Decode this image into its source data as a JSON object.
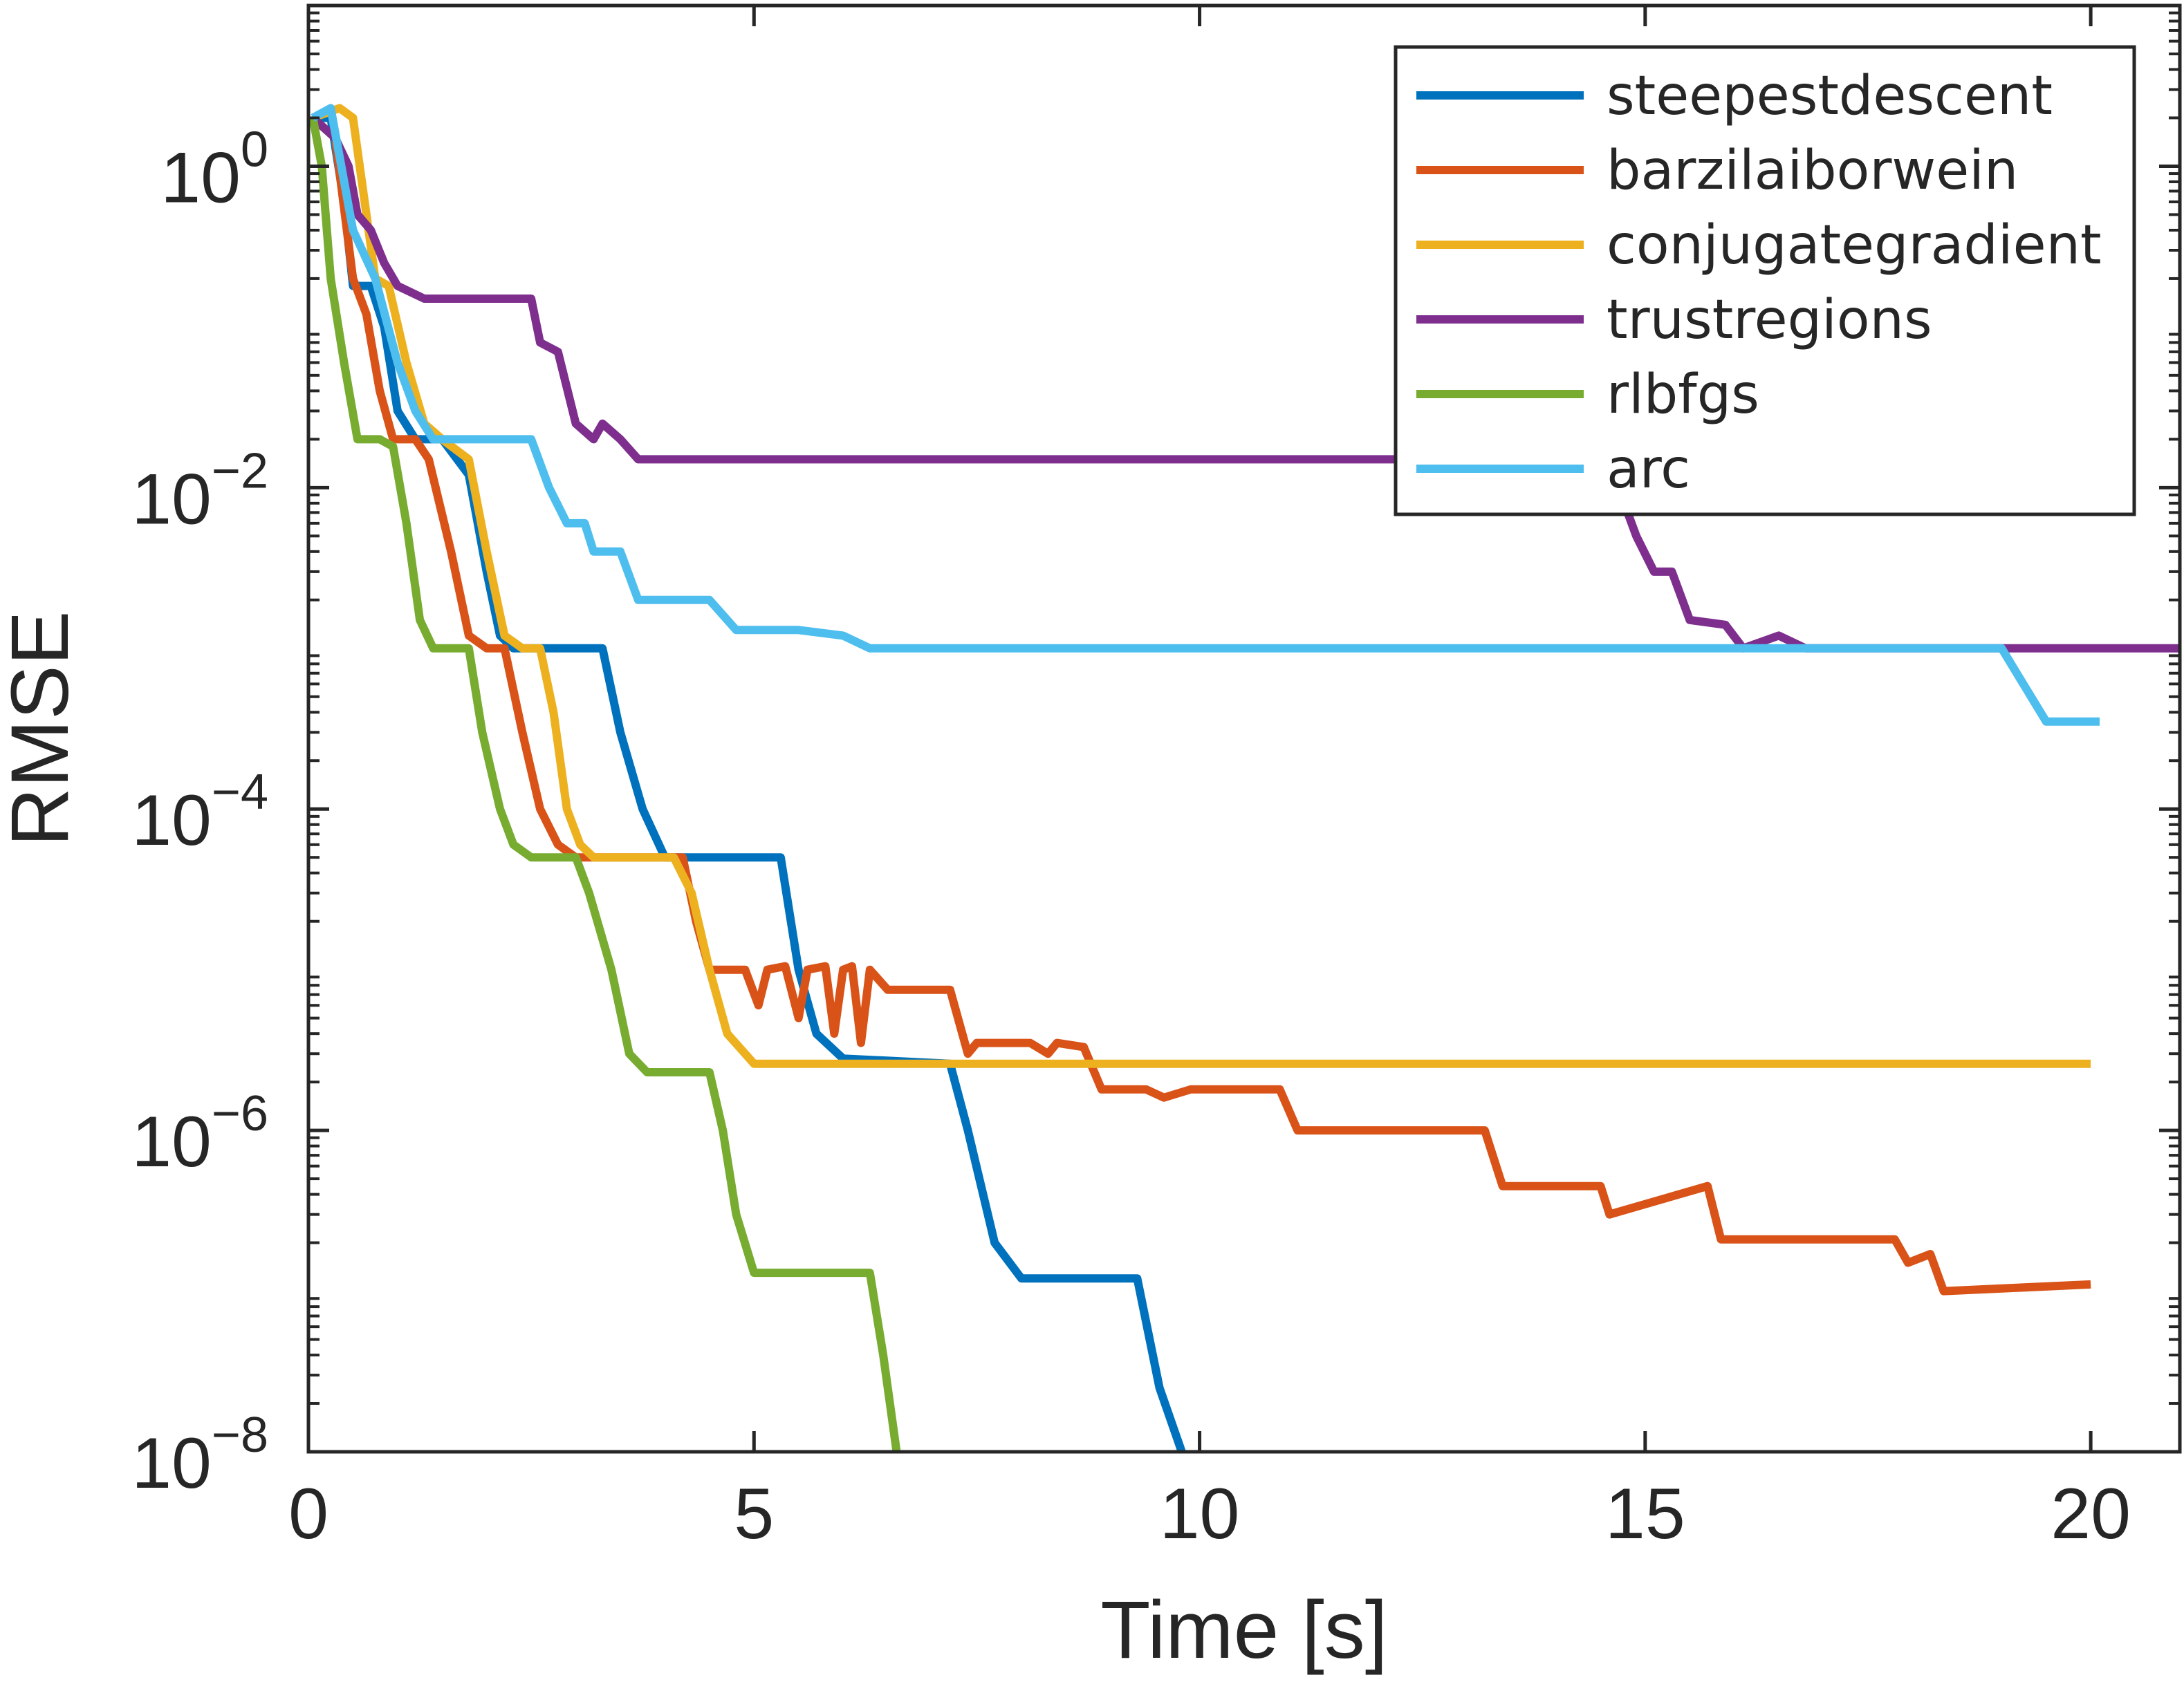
{
  "chart_data": {
    "type": "line",
    "title": "",
    "xlabel": "Time [s]",
    "ylabel": "RMSE",
    "xlim": [
      0,
      21
    ],
    "ylim": [
      1e-08,
      10
    ],
    "yscale": "log",
    "xticks": [
      0,
      5,
      10,
      15,
      20
    ],
    "xtick_labels": [
      "0",
      "5",
      "10",
      "15",
      "20"
    ],
    "yticks": [
      1e-08,
      1e-06,
      0.0001,
      0.01,
      1
    ],
    "ytick_labels": [
      {
        "base": "10",
        "exp": "−8"
      },
      {
        "base": "10",
        "exp": "−6"
      },
      {
        "base": "10",
        "exp": "−4"
      },
      {
        "base": "10",
        "exp": "−2"
      },
      {
        "base": "10",
        "exp": "0"
      }
    ],
    "grid": false,
    "box": true,
    "legend_position": "top-right",
    "series": [
      {
        "name": "steepestdescent",
        "color": "#0072BD",
        "points": [
          [
            0.05,
            2.0
          ],
          [
            0.25,
            2.0
          ],
          [
            0.4,
            0.6
          ],
          [
            0.5,
            0.18
          ],
          [
            0.7,
            0.18
          ],
          [
            0.85,
            0.1
          ],
          [
            1.0,
            0.03
          ],
          [
            1.2,
            0.02
          ],
          [
            1.5,
            0.02
          ],
          [
            1.8,
            0.012
          ],
          [
            2.0,
            0.003
          ],
          [
            2.15,
            0.0012
          ],
          [
            2.3,
            0.001
          ],
          [
            3.3,
            0.001
          ],
          [
            3.5,
            0.0003
          ],
          [
            3.75,
            0.0001
          ],
          [
            4.0,
            5e-05
          ],
          [
            5.3,
            5e-05
          ],
          [
            5.5,
            1e-05
          ],
          [
            5.7,
            4e-06
          ],
          [
            6.0,
            2.8e-06
          ],
          [
            7.2,
            2.6e-06
          ],
          [
            7.4,
            1e-06
          ],
          [
            7.7,
            2e-07
          ],
          [
            8.0,
            1.2e-07
          ],
          [
            9.3,
            1.2e-07
          ],
          [
            9.55,
            2.5e-08
          ],
          [
            9.8,
            1e-08
          ]
        ]
      },
      {
        "name": "barzilaiborwein",
        "color": "#D95319",
        "points": [
          [
            0.05,
            2.0
          ],
          [
            0.3,
            1.5
          ],
          [
            0.5,
            0.2
          ],
          [
            0.65,
            0.12
          ],
          [
            0.8,
            0.04
          ],
          [
            0.95,
            0.02
          ],
          [
            1.2,
            0.02
          ],
          [
            1.35,
            0.015
          ],
          [
            1.6,
            0.004
          ],
          [
            1.8,
            0.0012
          ],
          [
            2.0,
            0.001
          ],
          [
            2.2,
            0.001
          ],
          [
            2.4,
            0.0003
          ],
          [
            2.6,
            0.0001
          ],
          [
            2.8,
            6e-05
          ],
          [
            3.0,
            5e-05
          ],
          [
            4.2,
            5e-05
          ],
          [
            4.35,
            2e-05
          ],
          [
            4.5,
            1e-05
          ],
          [
            4.9,
            1e-05
          ],
          [
            5.05,
            6e-06
          ],
          [
            5.15,
            1e-05
          ],
          [
            5.35,
            1.05e-05
          ],
          [
            5.5,
            5e-06
          ],
          [
            5.6,
            1e-05
          ],
          [
            5.8,
            1.05e-05
          ],
          [
            5.9,
            4e-06
          ],
          [
            6.0,
            1e-05
          ],
          [
            6.1,
            1.05e-05
          ],
          [
            6.2,
            3.5e-06
          ],
          [
            6.3,
            1e-05
          ],
          [
            6.5,
            7.5e-06
          ],
          [
            7.2,
            7.5e-06
          ],
          [
            7.4,
            3e-06
          ],
          [
            7.5,
            3.5e-06
          ],
          [
            8.1,
            3.5e-06
          ],
          [
            8.3,
            3e-06
          ],
          [
            8.4,
            3.5e-06
          ],
          [
            8.7,
            3.3e-06
          ],
          [
            8.9,
            1.8e-06
          ],
          [
            9.4,
            1.8e-06
          ],
          [
            9.6,
            1.6e-06
          ],
          [
            9.9,
            1.8e-06
          ],
          [
            10.9,
            1.8e-06
          ],
          [
            11.1,
            1e-06
          ],
          [
            13.2,
            1e-06
          ],
          [
            13.4,
            4.5e-07
          ],
          [
            14.5,
            4.5e-07
          ],
          [
            14.6,
            3e-07
          ],
          [
            15.7,
            4.5e-07
          ],
          [
            15.85,
            2.1e-07
          ],
          [
            17.8,
            2.1e-07
          ],
          [
            17.95,
            1.5e-07
          ],
          [
            18.2,
            1.7e-07
          ],
          [
            18.35,
            1e-07
          ],
          [
            20.0,
            1.1e-07
          ]
        ]
      },
      {
        "name": "conjugategradient",
        "color": "#EDB120",
        "points": [
          [
            0.05,
            2.0
          ],
          [
            0.35,
            2.3
          ],
          [
            0.5,
            2.0
          ],
          [
            0.6,
            0.8
          ],
          [
            0.75,
            0.2
          ],
          [
            0.9,
            0.18
          ],
          [
            1.1,
            0.06
          ],
          [
            1.3,
            0.025
          ],
          [
            1.5,
            0.02
          ],
          [
            1.8,
            0.015
          ],
          [
            2.0,
            0.004
          ],
          [
            2.2,
            0.0012
          ],
          [
            2.4,
            0.001
          ],
          [
            2.6,
            0.001
          ],
          [
            2.75,
            0.0004
          ],
          [
            2.9,
            0.0001
          ],
          [
            3.05,
            6e-05
          ],
          [
            3.2,
            5e-05
          ],
          [
            4.1,
            5e-05
          ],
          [
            4.3,
            3e-05
          ],
          [
            4.5,
            1e-05
          ],
          [
            4.7,
            4e-06
          ],
          [
            5.0,
            2.6e-06
          ],
          [
            20.0,
            2.6e-06
          ]
        ]
      },
      {
        "name": "trustregions",
        "color": "#7E2F8E",
        "points": [
          [
            0.05,
            2.0
          ],
          [
            0.3,
            1.5
          ],
          [
            0.45,
            1.0
          ],
          [
            0.55,
            0.5
          ],
          [
            0.7,
            0.4
          ],
          [
            0.85,
            0.25
          ],
          [
            1.0,
            0.18
          ],
          [
            1.3,
            0.15
          ],
          [
            1.5,
            0.15
          ],
          [
            2.5,
            0.15
          ],
          [
            2.6,
            0.08
          ],
          [
            2.8,
            0.07
          ],
          [
            3.0,
            0.025
          ],
          [
            3.2,
            0.02
          ],
          [
            3.3,
            0.025
          ],
          [
            3.5,
            0.02
          ],
          [
            3.7,
            0.015
          ],
          [
            4.0,
            0.015
          ],
          [
            14.0,
            0.015
          ],
          [
            14.5,
            0.012
          ],
          [
            14.7,
            0.01
          ],
          [
            14.9,
            0.005
          ],
          [
            15.1,
            0.003
          ],
          [
            15.3,
            0.003
          ],
          [
            15.5,
            0.0015
          ],
          [
            15.9,
            0.0014
          ],
          [
            16.1,
            0.001
          ],
          [
            16.5,
            0.0012
          ],
          [
            16.8,
            0.001
          ],
          [
            21.0,
            0.001
          ]
        ]
      },
      {
        "name": "rlbfgs",
        "color": "#77AC30",
        "points": [
          [
            0.05,
            2.0
          ],
          [
            0.15,
            1.0
          ],
          [
            0.25,
            0.2
          ],
          [
            0.4,
            0.06
          ],
          [
            0.55,
            0.02
          ],
          [
            0.8,
            0.02
          ],
          [
            0.95,
            0.018
          ],
          [
            1.1,
            0.006
          ],
          [
            1.25,
            0.0015
          ],
          [
            1.4,
            0.001
          ],
          [
            1.8,
            0.001
          ],
          [
            1.95,
            0.0003
          ],
          [
            2.15,
            0.0001
          ],
          [
            2.3,
            6e-05
          ],
          [
            2.5,
            5e-05
          ],
          [
            3.0,
            5e-05
          ],
          [
            3.15,
            3e-05
          ],
          [
            3.4,
            1e-05
          ],
          [
            3.6,
            3e-06
          ],
          [
            3.8,
            2.3e-06
          ],
          [
            4.5,
            2.3e-06
          ],
          [
            4.65,
            1e-06
          ],
          [
            4.8,
            3e-07
          ],
          [
            5.0,
            1.3e-07
          ],
          [
            6.3,
            1.3e-07
          ],
          [
            6.45,
            4e-08
          ],
          [
            6.6,
            1e-08
          ]
        ]
      },
      {
        "name": "arc",
        "color": "#4DBEEE",
        "points": [
          [
            0.05,
            2.0
          ],
          [
            0.25,
            2.3
          ],
          [
            0.5,
            0.4
          ],
          [
            0.75,
            0.2
          ],
          [
            1.0,
            0.06
          ],
          [
            1.2,
            0.03
          ],
          [
            1.4,
            0.02
          ],
          [
            2.5,
            0.02
          ],
          [
            2.7,
            0.01
          ],
          [
            2.9,
            0.006
          ],
          [
            3.1,
            0.006
          ],
          [
            3.2,
            0.004
          ],
          [
            3.5,
            0.004
          ],
          [
            3.7,
            0.002
          ],
          [
            4.0,
            0.002
          ],
          [
            4.5,
            0.002
          ],
          [
            4.8,
            0.0013
          ],
          [
            5.5,
            0.0013
          ],
          [
            6.0,
            0.0012
          ],
          [
            6.3,
            0.001
          ],
          [
            8.0,
            0.001
          ],
          [
            9.0,
            0.001
          ],
          [
            19.0,
            0.001
          ],
          [
            19.5,
            0.00035
          ],
          [
            20.1,
            0.00035
          ]
        ]
      }
    ]
  }
}
